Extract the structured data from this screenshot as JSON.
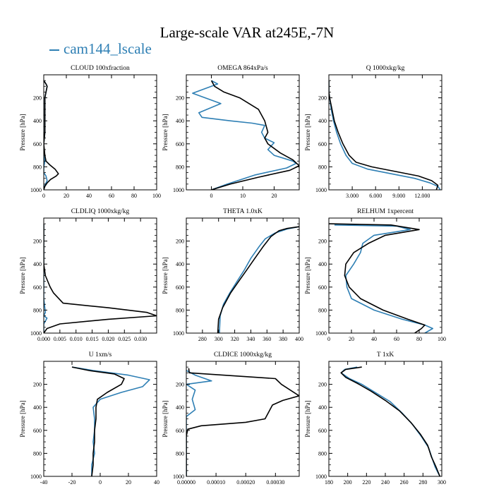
{
  "figure": {
    "title": "Large-scale VAR at245E,-7N",
    "legend_label": "cam144_lscale",
    "colors": {
      "cam144_lscale": "#2e7fb4",
      "reference": "#000000"
    }
  },
  "chart_data": [
    {
      "type": "line",
      "title": "CLOUD  100xfraction",
      "ylabel": "Pressure [hPa]",
      "xlim": [
        0,
        100
      ],
      "ylim": [
        1000,
        0
      ],
      "y_inverted": true,
      "xticks": [
        0,
        20,
        40,
        60,
        80,
        100
      ],
      "xticklabels": [
        "0",
        "20",
        "40",
        "60",
        "80",
        "100"
      ],
      "yticks": [
        200,
        400,
        600,
        800,
        1000
      ],
      "yticklabels": [
        "200",
        "400",
        "600",
        "800",
        "1000"
      ],
      "series": [
        {
          "name": "cam144_lscale",
          "color": "#2e7fb4",
          "x": [
            0,
            2,
            3,
            2,
            1,
            1,
            1,
            1,
            0,
            0,
            0,
            1,
            0,
            0,
            0,
            2,
            3,
            1,
            0
          ],
          "y": [
            50,
            80,
            100,
            150,
            200,
            300,
            400,
            500,
            600,
            650,
            700,
            750,
            800,
            820,
            850,
            880,
            920,
            960,
            1000
          ]
        },
        {
          "color": "#000000",
          "x": [
            0,
            2,
            3,
            2,
            1,
            1,
            1,
            1,
            0,
            1,
            2,
            5,
            10,
            13,
            11,
            6,
            3,
            1,
            0
          ],
          "y": [
            50,
            80,
            100,
            150,
            200,
            300,
            400,
            500,
            600,
            700,
            750,
            780,
            820,
            860,
            880,
            910,
            940,
            970,
            1000
          ]
        }
      ]
    },
    {
      "type": "line",
      "title": "OMEGA  864xPa/s",
      "ylabel": "Pressure [hPa]",
      "xlim": [
        -8,
        28
      ],
      "ylim": [
        1000,
        0
      ],
      "y_inverted": true,
      "xticks": [
        0,
        10,
        20
      ],
      "xticklabels": [
        "0",
        "10",
        "20"
      ],
      "yticks": [
        200,
        400,
        600,
        800,
        1000
      ],
      "yticklabels": [
        "200",
        "400",
        "600",
        "800",
        "1000"
      ],
      "series": [
        {
          "name": "cam144_lscale",
          "color": "#2e7fb4",
          "x": [
            0,
            2,
            -6,
            3,
            -4,
            -3,
            6,
            13,
            17,
            16,
            17,
            20,
            18,
            20,
            26,
            27,
            24,
            14,
            5,
            0
          ],
          "y": [
            50,
            80,
            160,
            250,
            330,
            370,
            400,
            420,
            440,
            500,
            550,
            590,
            650,
            700,
            750,
            770,
            810,
            870,
            950,
            1000
          ]
        },
        {
          "color": "#000000",
          "x": [
            0,
            1,
            4,
            9,
            15,
            17,
            18,
            17,
            18,
            22,
            26,
            28,
            25,
            15,
            6,
            0
          ],
          "y": [
            50,
            100,
            150,
            200,
            300,
            400,
            500,
            550,
            600,
            680,
            740,
            790,
            830,
            890,
            950,
            1000
          ]
        }
      ]
    },
    {
      "type": "line",
      "title": "Q  1000xkg/kg",
      "ylabel": "Pressure [hPa]",
      "xlim": [
        0,
        14.5
      ],
      "ylim": [
        1000,
        0
      ],
      "y_inverted": true,
      "xticks": [
        3,
        6,
        9,
        12
      ],
      "xticklabels": [
        "3.000",
        "6.000",
        "9.000",
        "12.000"
      ],
      "yticks": [
        200,
        400,
        600,
        800,
        1000
      ],
      "yticklabels": [
        "200",
        "400",
        "600",
        "800",
        "1000"
      ],
      "series": [
        {
          "name": "cam144_lscale",
          "color": "#2e7fb4",
          "x": [
            0,
            0,
            0.1,
            0.3,
            0.6,
            1.0,
            1.5,
            2.2,
            3.0,
            5,
            8,
            11,
            13,
            14,
            14.3
          ],
          "y": [
            50,
            150,
            200,
            300,
            400,
            500,
            600,
            700,
            770,
            820,
            860,
            900,
            940,
            970,
            1000
          ]
        },
        {
          "color": "#000000",
          "x": [
            0,
            0,
            0.1,
            0.4,
            0.7,
            1.2,
            1.8,
            2.6,
            3.5,
            5.5,
            8.5,
            11.5,
            13.2,
            14.0,
            13.8
          ],
          "y": [
            50,
            150,
            200,
            300,
            400,
            500,
            600,
            700,
            760,
            800,
            840,
            880,
            920,
            960,
            1000
          ]
        }
      ]
    },
    {
      "type": "line",
      "title": "CLDLIQ  1000xkg/kg",
      "ylabel": "Pressure [hPa]",
      "xlim": [
        0,
        0.035
      ],
      "ylim": [
        1000,
        0
      ],
      "y_inverted": true,
      "xticks": [
        0,
        0.005,
        0.01,
        0.015,
        0.02,
        0.025,
        0.03
      ],
      "xticklabels": [
        "0.000",
        "0.005",
        "0.010",
        "0.015",
        "0.020",
        "0.025",
        "0.030"
      ],
      "yticks": [
        200,
        400,
        600,
        800,
        1000
      ],
      "yticklabels": [
        "200",
        "400",
        "600",
        "800",
        "1000"
      ],
      "series": [
        {
          "name": "cam144_lscale",
          "color": "#2e7fb4",
          "x": [
            0,
            0,
            0,
            0,
            0.0005,
            0,
            0.001,
            0,
            0
          ],
          "y": [
            50,
            400,
            600,
            700,
            820,
            850,
            870,
            920,
            1000
          ]
        },
        {
          "color": "#000000",
          "x": [
            0,
            0,
            0.0005,
            0.002,
            0.003,
            0.006,
            0.02,
            0.032,
            0.035,
            0.02,
            0.005,
            0.001,
            0
          ],
          "y": [
            50,
            400,
            500,
            600,
            650,
            740,
            780,
            820,
            850,
            880,
            920,
            960,
            1000
          ]
        }
      ]
    },
    {
      "type": "line",
      "title": "THETA  1.0xK",
      "ylabel": "Pressure [hPa]",
      "xlim": [
        260,
        400
      ],
      "ylim": [
        1000,
        0
      ],
      "y_inverted": true,
      "xticks": [
        280,
        300,
        320,
        340,
        360,
        380,
        400
      ],
      "xticklabels": [
        "280",
        "300",
        "320",
        "340",
        "360",
        "380",
        "400"
      ],
      "yticks": [
        200,
        400,
        600,
        800,
        1000
      ],
      "yticklabels": [
        "200",
        "400",
        "600",
        "800",
        "1000"
      ],
      "series": [
        {
          "name": "cam144_lscale",
          "color": "#2e7fb4",
          "x": [
            400,
            385,
            370,
            358,
            350,
            340,
            332,
            323,
            314,
            306,
            302,
            301
          ],
          "y": [
            75,
            95,
            130,
            180,
            250,
            350,
            450,
            550,
            650,
            750,
            850,
            1000
          ]
        },
        {
          "color": "#000000",
          "x": [
            400,
            385,
            375,
            365,
            355,
            345,
            335,
            325,
            315,
            305,
            300,
            299
          ],
          "y": [
            75,
            90,
            110,
            160,
            250,
            350,
            450,
            550,
            650,
            780,
            880,
            1000
          ]
        }
      ]
    },
    {
      "type": "line",
      "title": "RELHUM  1xpercent",
      "ylabel": "Pressure [hPa]",
      "xlim": [
        0,
        100
      ],
      "ylim": [
        1000,
        0
      ],
      "y_inverted": true,
      "xticks": [
        0,
        20,
        40,
        60,
        80,
        100
      ],
      "xticklabels": [
        "0",
        "20",
        "40",
        "60",
        "80",
        "100"
      ],
      "yticks": [
        200,
        400,
        600,
        800,
        1000
      ],
      "yticklabels": [
        "200",
        "400",
        "600",
        "800",
        "1000"
      ],
      "series": [
        {
          "name": "cam144_lscale",
          "color": "#2e7fb4",
          "x": [
            5,
            60,
            72,
            40,
            30,
            28,
            22,
            15,
            16,
            20,
            40,
            65,
            85,
            92,
            85
          ],
          "y": [
            60,
            70,
            100,
            150,
            220,
            300,
            400,
            500,
            600,
            700,
            800,
            880,
            930,
            960,
            1000
          ]
        },
        {
          "color": "#000000",
          "x": [
            0,
            55,
            80,
            50,
            35,
            22,
            15,
            14,
            18,
            28,
            48,
            70,
            85,
            82,
            76
          ],
          "y": [
            50,
            60,
            100,
            150,
            220,
            300,
            400,
            500,
            600,
            700,
            800,
            880,
            930,
            960,
            1000
          ]
        }
      ]
    },
    {
      "type": "line",
      "title": "U  1xm/s",
      "ylabel": "Pressure [hPa]",
      "xlim": [
        -40,
        40
      ],
      "ylim": [
        1000,
        0
      ],
      "y_inverted": true,
      "xticks": [
        -40,
        -20,
        0,
        20,
        40
      ],
      "xticklabels": [
        "-40",
        "-20",
        "0",
        "20",
        "40"
      ],
      "yticks": [
        200,
        400,
        600,
        800,
        1000
      ],
      "yticklabels": [
        "200",
        "400",
        "600",
        "800",
        "1000"
      ],
      "series": [
        {
          "name": "cam144_lscale",
          "color": "#2e7fb4",
          "x": [
            -20,
            -5,
            20,
            35,
            30,
            15,
            0,
            -5,
            -4,
            -4,
            -5,
            -4,
            -6,
            -6
          ],
          "y": [
            50,
            80,
            120,
            160,
            220,
            270,
            330,
            400,
            500,
            600,
            700,
            800,
            900,
            1000
          ]
        },
        {
          "color": "#000000",
          "x": [
            -20,
            -8,
            10,
            17,
            15,
            5,
            -2,
            -3,
            -3,
            -4,
            -4,
            -5,
            -5,
            -6
          ],
          "y": [
            50,
            80,
            110,
            150,
            200,
            270,
            330,
            400,
            500,
            600,
            700,
            800,
            900,
            1000
          ]
        }
      ]
    },
    {
      "type": "line",
      "title": "CLDICE  1000xkg/kg",
      "ylabel": "Pressure [hPa]",
      "xlim": [
        0,
        0.00038
      ],
      "ylim": [
        1000,
        0
      ],
      "y_inverted": true,
      "xticks": [
        0,
        0.0001,
        0.0002,
        0.0003
      ],
      "xticklabels": [
        "0.00000",
        "0.00010",
        "0.00020",
        "0.00030"
      ],
      "yticks": [
        200,
        400,
        600,
        800,
        1000
      ],
      "yticklabels": [
        "200",
        "400",
        "600",
        "800",
        "1000"
      ],
      "series": [
        {
          "name": "cam144_lscale",
          "color": "#2e7fb4",
          "x": [
            0,
            3e-05,
            8.5e-05,
            0,
            3e-05,
            2e-05,
            3e-05,
            0,
            0,
            0
          ],
          "y": [
            80,
            120,
            170,
            200,
            250,
            330,
            420,
            480,
            600,
            1000
          ]
        },
        {
          "color": "#000000",
          "x": [
            8e-06,
            1e-05,
            0.0003,
            0.00032,
            0.00038,
            0.000325,
            0.00029,
            0.000265,
            0.0002,
            5e-05,
            5e-06,
            0,
            0
          ],
          "y": [
            60,
            100,
            150,
            200,
            300,
            340,
            380,
            500,
            530,
            560,
            590,
            650,
            1000
          ]
        }
      ]
    },
    {
      "type": "line",
      "title": "T  1xK",
      "ylabel": "Pressure [hPa]",
      "xlim": [
        180,
        300
      ],
      "ylim": [
        1000,
        0
      ],
      "y_inverted": true,
      "xticks": [
        180,
        200,
        220,
        240,
        260,
        280,
        300
      ],
      "xticklabels": [
        "180",
        "200",
        "220",
        "240",
        "260",
        "280",
        "300"
      ],
      "yticks": [
        200,
        400,
        600,
        800,
        1000
      ],
      "yticklabels": [
        "200",
        "400",
        "600",
        "800",
        "1000"
      ],
      "series": [
        {
          "name": "cam144_lscale",
          "color": "#2e7fb4",
          "x": [
            210,
            197,
            193,
            202,
            215,
            231,
            245,
            258,
            269,
            278,
            286,
            290,
            293,
            298
          ],
          "y": [
            50,
            70,
            100,
            150,
            200,
            280,
            350,
            450,
            550,
            650,
            750,
            850,
            920,
            1000
          ]
        },
        {
          "color": "#000000",
          "x": [
            215,
            198,
            193,
            198,
            210,
            225,
            240,
            255,
            267,
            277,
            285,
            289,
            294,
            298
          ],
          "y": [
            50,
            70,
            100,
            140,
            190,
            260,
            340,
            430,
            530,
            630,
            730,
            830,
            920,
            1000
          ]
        }
      ]
    }
  ]
}
